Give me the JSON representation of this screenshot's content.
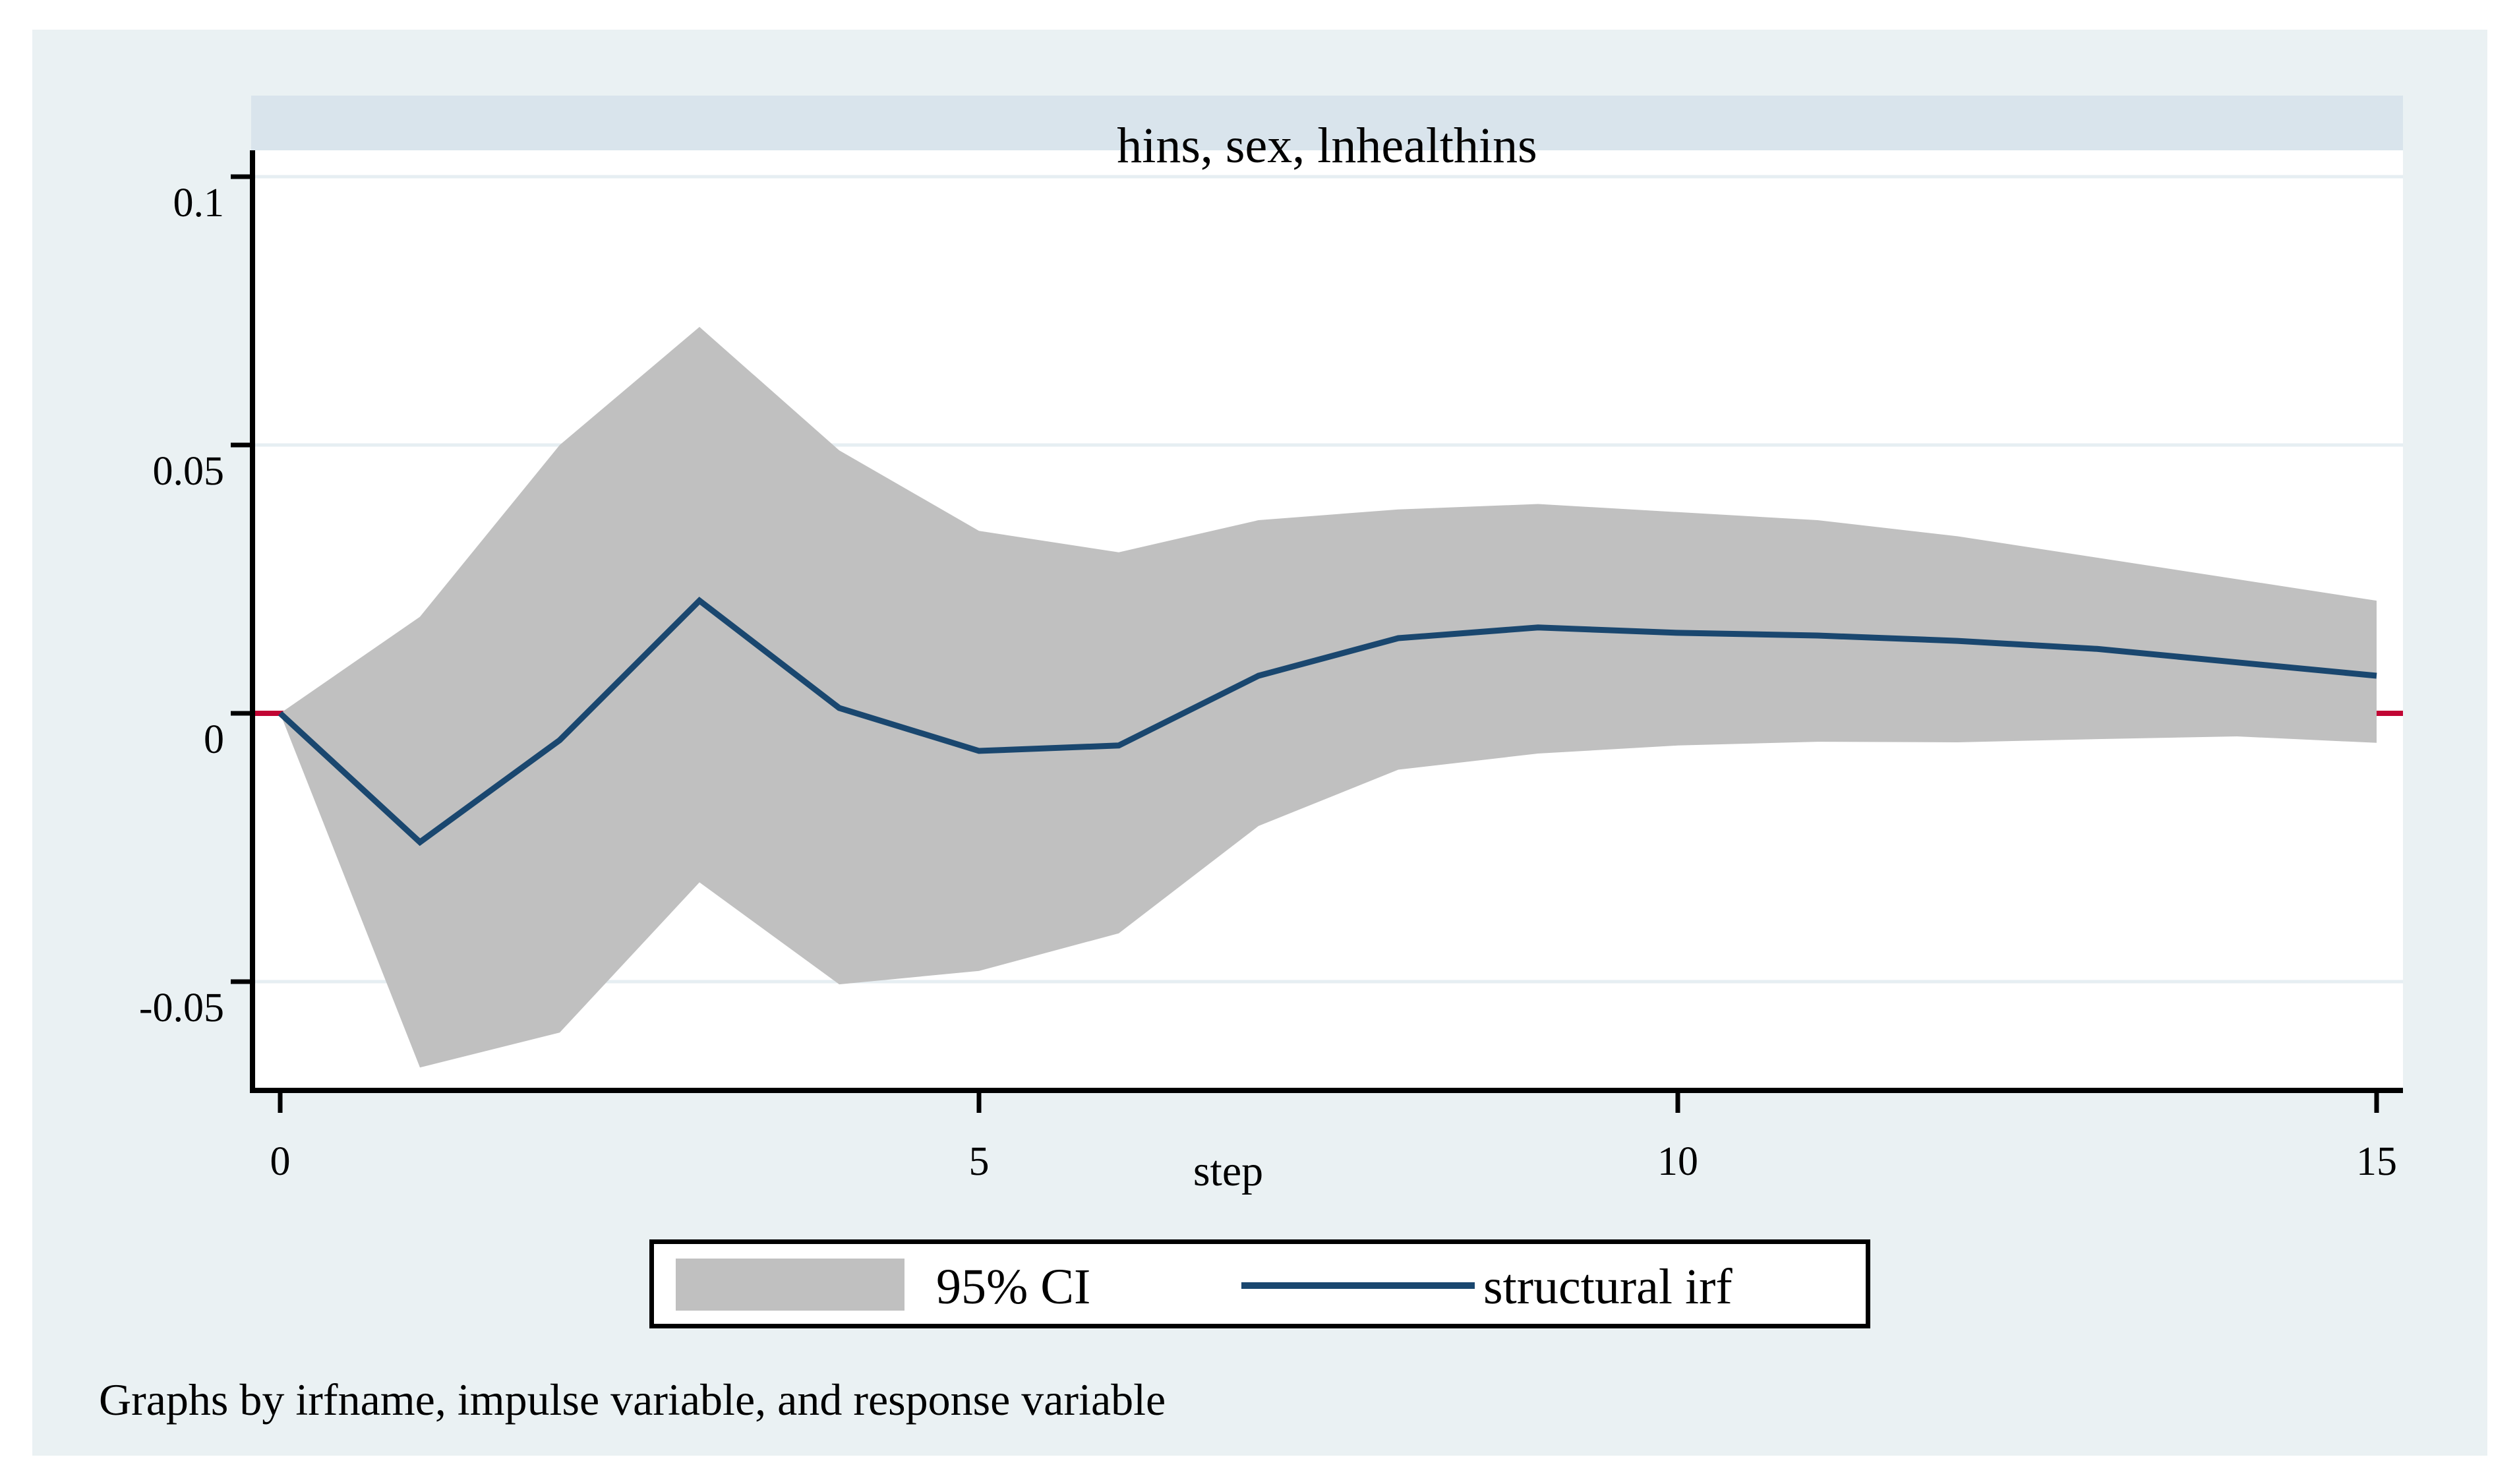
{
  "graph": {
    "panel_title": "hins, sex, lnhealthins",
    "x_axis_title": "step",
    "note": "Graphs by irfname, impulse variable, and response variable",
    "colors": {
      "outer_background": "#eaf1f3",
      "title_band": "#d9e4ec",
      "plot_background": "#ffffff",
      "ci_band_fill": "#c0c0c0",
      "irf_line": "#1a476f",
      "zero_line": "#c10534",
      "gridline": "#e6eef2",
      "axis": "#000000"
    },
    "legend": {
      "entries": [
        {
          "label": "95% CI",
          "swatch": "gray-rectangle"
        },
        {
          "label": "structural irf",
          "swatch": "navy-line"
        }
      ]
    }
  },
  "chart_data": {
    "type": "line",
    "title": "hins, sex, lnhealthins",
    "xlabel": "step",
    "ylabel": "",
    "x": [
      0,
      1,
      2,
      3,
      4,
      5,
      6,
      7,
      8,
      9,
      10,
      11,
      12,
      13,
      14,
      15
    ],
    "series": [
      {
        "name": "structural irf",
        "values": [
          0,
          -0.024,
          -0.005,
          0.021,
          0.001,
          -0.007,
          -0.006,
          0.007,
          0.014,
          0.016,
          0.015,
          0.0145,
          0.0135,
          0.012,
          0.0095,
          0.007
        ]
      },
      {
        "name": "95% CI upper",
        "values": [
          0,
          0.018,
          0.05,
          0.072,
          0.049,
          0.034,
          0.03,
          0.036,
          0.038,
          0.039,
          0.0375,
          0.036,
          0.033,
          0.029,
          0.025,
          0.021
        ]
      },
      {
        "name": "95% CI lower",
        "values": [
          0,
          -0.066,
          -0.0595,
          -0.0315,
          -0.0505,
          -0.048,
          -0.041,
          -0.021,
          -0.0105,
          -0.0075,
          -0.006,
          -0.0053,
          -0.0054,
          -0.0048,
          -0.0043,
          -0.0055
        ]
      }
    ],
    "zero_line_y": 0,
    "yticks": [
      {
        "value": 0.1,
        "label": "0.1"
      },
      {
        "value": 0.05,
        "label": "0.05"
      },
      {
        "value": 0,
        "label": "0"
      },
      {
        "value": -0.05,
        "label": "-0.05"
      }
    ],
    "xticks": [
      {
        "value": 0,
        "label": "0"
      },
      {
        "value": 5,
        "label": "5"
      },
      {
        "value": 10,
        "label": "10"
      },
      {
        "value": 15,
        "label": "15"
      }
    ],
    "ylim": [
      -0.0703,
      0.1049
    ],
    "xlim": [
      -0.18,
      15.19
    ],
    "grid": true,
    "legend_position": "bottom-center"
  }
}
